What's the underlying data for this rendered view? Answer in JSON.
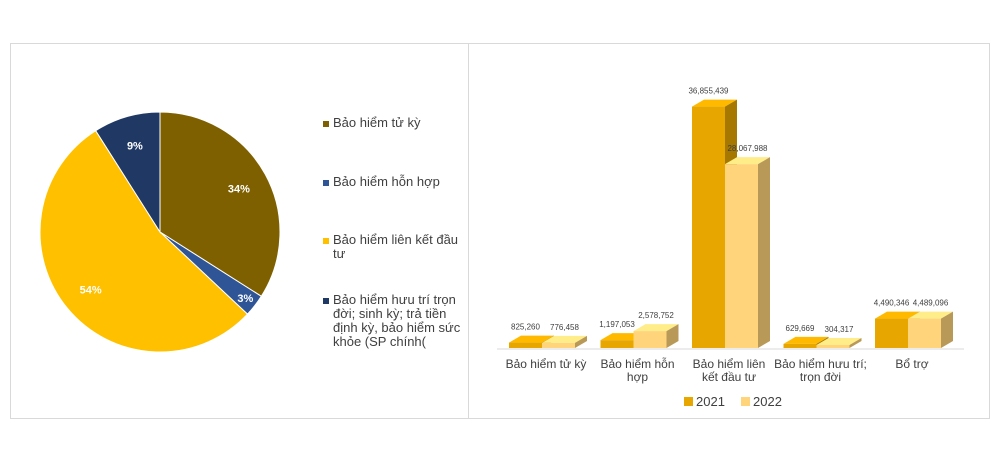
{
  "chart_data": [
    {
      "type": "pie",
      "slices": [
        {
          "label": "Bảo hiểm tử kỳ",
          "value": 34,
          "value_label": "34%",
          "color": "#7f6000"
        },
        {
          "label": "Bảo hiểm hỗn hợp",
          "value": 3,
          "value_label": "3%",
          "color": "#2f5597"
        },
        {
          "label": "Bảo hiểm liên kết đầu tư",
          "value": 54,
          "value_label": "54%",
          "color": "#ffc000"
        },
        {
          "label": "Bảo hiểm hưu trí trọn đời; sinh kỳ; trả tiền định kỳ, bảo hiểm sức khỏe (SP chính(",
          "value": 9,
          "value_label": "9%",
          "color": "#1f3864"
        }
      ],
      "legend_position": "right"
    },
    {
      "type": "bar",
      "style": "3d-clustered-column",
      "categories": [
        "Bảo hiểm tử kỳ",
        "Bảo hiểm hỗn hợp",
        "Bảo hiểm liên kết đầu tư",
        "Bảo hiểm hưu trí; trọn đời",
        "Bổ trợ"
      ],
      "category_lines": [
        [
          "Bảo hiểm tử kỳ"
        ],
        [
          "Bảo hiểm hỗn",
          "hợp"
        ],
        [
          "Bảo hiểm liên",
          "kết đầu tư"
        ],
        [
          "Bảo hiểm hưu trí;",
          "trọn đời"
        ],
        [
          "Bổ trợ"
        ]
      ],
      "series": [
        {
          "name": "2021",
          "color": "#e7a600",
          "values": [
            825260,
            1197053,
            36855439,
            629669,
            4490346
          ],
          "value_labels": [
            "825,260",
            "1,197,053",
            "36,855,439",
            "629,669",
            "4,490,346"
          ]
        },
        {
          "name": "2022",
          "color": "#ffd47a",
          "values": [
            776458,
            2578752,
            28067988,
            304317,
            4489096
          ],
          "value_labels": [
            "776,458",
            "2,578,752",
            "28,067,988",
            "304,317",
            "4,489,096"
          ]
        }
      ],
      "ylim": [
        0,
        40000000
      ],
      "legend_position": "bottom",
      "grid": false
    }
  ]
}
